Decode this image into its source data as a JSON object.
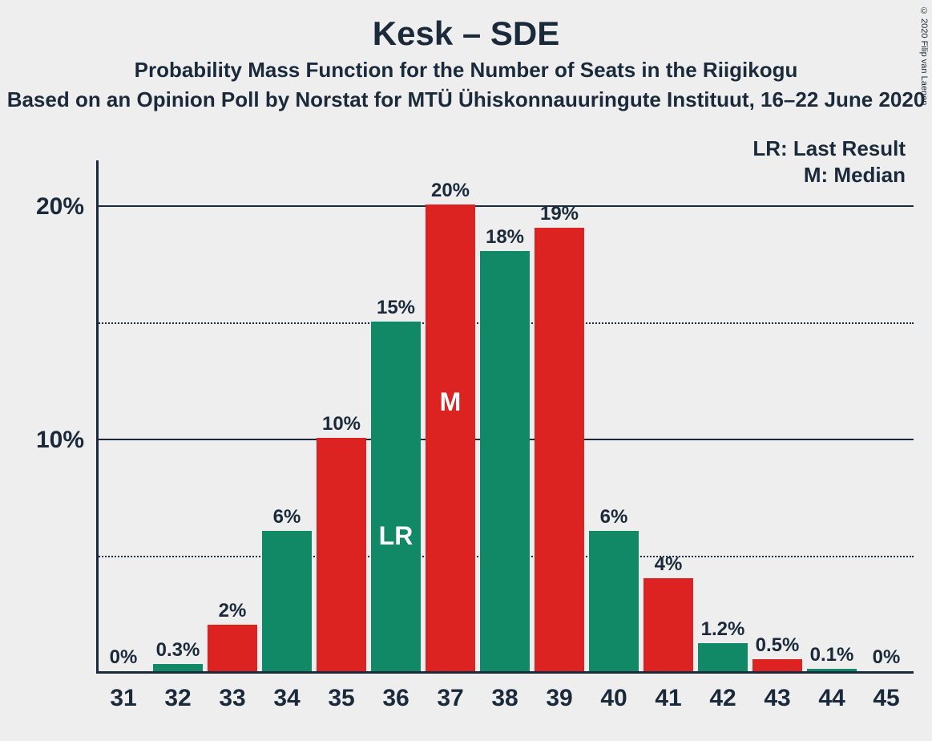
{
  "title": "Kesk – SDE",
  "subtitle": "Probability Mass Function for the Number of Seats in the Riigikogu",
  "source": "Based on an Opinion Poll by Norstat for MTÜ Ühiskonnauuringute Instituut, 16–22 June 2020",
  "copyright": "© 2020 Filip van Laenen",
  "legend": {
    "lr": "LR: Last Result",
    "m": "M: Median"
  },
  "chart": {
    "type": "bar",
    "background_color": "#eeeeee",
    "text_color": "#1a2a3a",
    "title_fontsize": 42,
    "subtitle_fontsize": 26,
    "axis_label_fontsize": 30,
    "bar_label_fontsize": 24,
    "legend_fontsize": 26,
    "marker_fontsize": 32,
    "colors": {
      "green": "#118866",
      "red": "#dd2222",
      "marker_text": "#ffffff"
    },
    "bar_width_ratio": 0.92,
    "y": {
      "min": 0,
      "max": 22,
      "major_ticks": [
        10,
        20
      ],
      "minor_ticks": [
        5,
        15
      ],
      "major_labels": [
        "10%",
        "20%"
      ],
      "grid_major_style": "solid",
      "grid_minor_style": "dotted"
    },
    "categories": [
      "31",
      "32",
      "33",
      "34",
      "35",
      "36",
      "37",
      "38",
      "39",
      "40",
      "41",
      "42",
      "43",
      "44",
      "45"
    ],
    "values": [
      0,
      0.3,
      2,
      6,
      10,
      15,
      20,
      18,
      19,
      6,
      4,
      1.2,
      0.5,
      0.1,
      0
    ],
    "labels": [
      "0%",
      "0.3%",
      "2%",
      "6%",
      "10%",
      "15%",
      "20%",
      "18%",
      "19%",
      "6%",
      "4%",
      "1.2%",
      "0.5%",
      "0.1%",
      "0%"
    ],
    "lr_index": 5,
    "m_index": 6,
    "lr_marker": "LR",
    "m_marker": "M"
  }
}
